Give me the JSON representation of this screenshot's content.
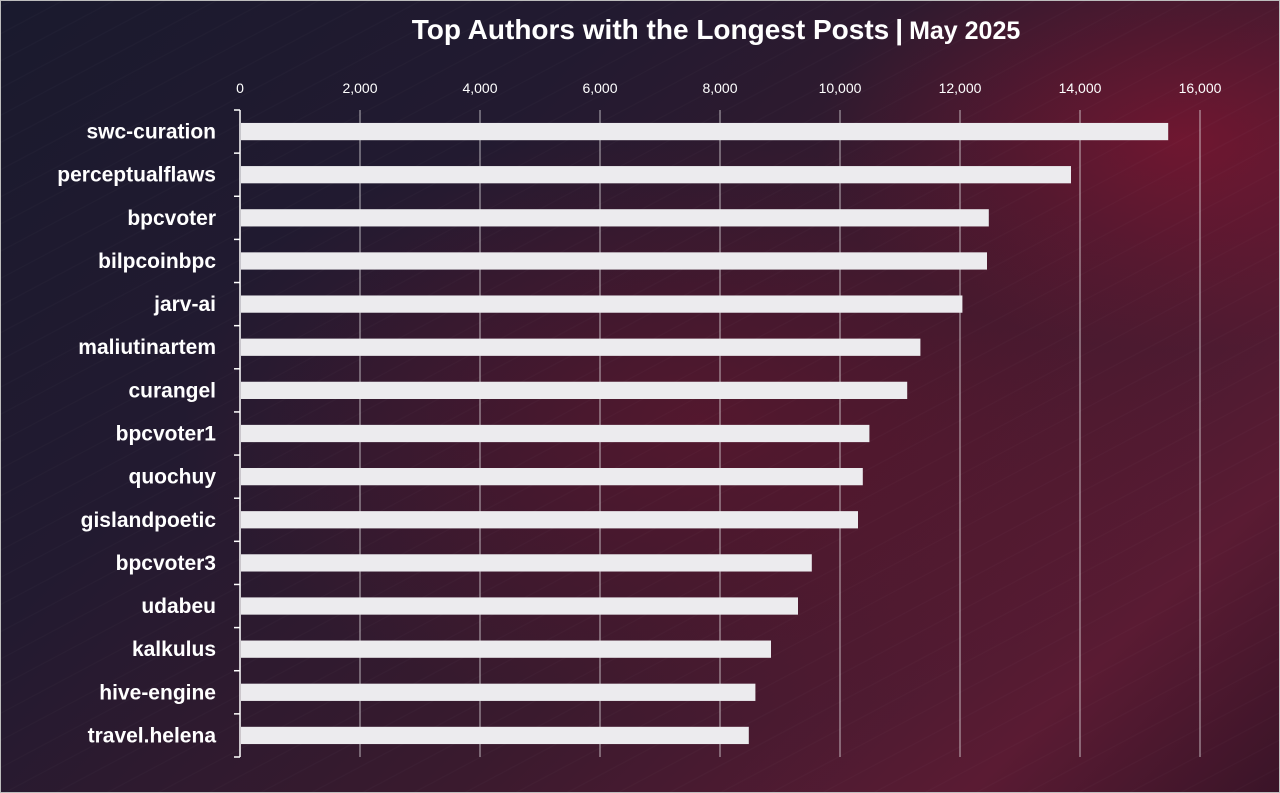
{
  "title": {
    "main": "Top Authors with the Longest Posts",
    "separator": "|",
    "sub": "May 2025"
  },
  "colors": {
    "bar": "#ecebee",
    "grid": "#e8e8e8",
    "text": "#ffffff"
  },
  "chart_data": {
    "type": "bar",
    "orientation": "horizontal",
    "categories": [
      "swc-curation",
      "perceptualflaws",
      "bpcvoter",
      "bilpcoinbpc",
      "jarv-ai",
      "maliutinartem",
      "curangel",
      "bpcvoter1",
      "quochuy",
      "gislandpoetic",
      "bpcvoter3",
      "udabeu",
      "kalkulus",
      "hive-engine",
      "travel.helena"
    ],
    "values": [
      15470,
      13850,
      12480,
      12450,
      12040,
      11340,
      11120,
      10490,
      10380,
      10300,
      9530,
      9300,
      8850,
      8590,
      8480
    ],
    "xlim": [
      0,
      16000
    ],
    "xticks": [
      0,
      2000,
      4000,
      6000,
      8000,
      10000,
      12000,
      14000,
      16000
    ],
    "xtick_labels": [
      "0",
      "2,000",
      "4,000",
      "6,000",
      "8,000",
      "10,000",
      "12,000",
      "14,000",
      "16,000"
    ],
    "x_axis_position": "top",
    "grid": true,
    "legend": "none",
    "xlabel": "",
    "ylabel": ""
  }
}
